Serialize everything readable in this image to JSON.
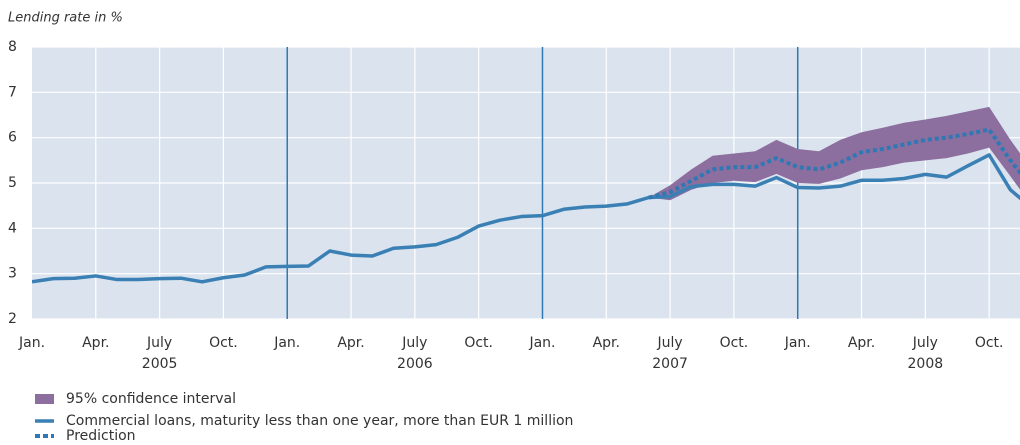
{
  "chart_data": {
    "type": "line",
    "y_label": "Lending rate in %",
    "categories": [
      "Jan.",
      null,
      null,
      "Apr.",
      null,
      null,
      "July",
      null,
      null,
      "Oct.",
      null,
      null,
      "Jan.",
      null,
      null,
      "Apr.",
      null,
      null,
      "July",
      null,
      null,
      "Oct.",
      null,
      null,
      "Jan.",
      null,
      null,
      "Apr.",
      null,
      null,
      "July",
      null,
      null,
      "Oct.",
      null,
      null,
      "Jan.",
      null,
      null,
      "Apr.",
      null,
      null,
      "July",
      null,
      null,
      "Oct.",
      null,
      null
    ],
    "x_groups": [
      "2005",
      "2006",
      "2007",
      "2008"
    ],
    "series": [
      {
        "name": "95% confidence interval",
        "color": "#8c6e9f",
        "lower": [
          null,
          null,
          null,
          null,
          null,
          null,
          null,
          null,
          null,
          null,
          null,
          null,
          null,
          null,
          null,
          null,
          null,
          null,
          null,
          null,
          null,
          null,
          null,
          null,
          null,
          null,
          null,
          null,
          null,
          4.68,
          4.62,
          4.85,
          5.0,
          5.05,
          5.02,
          5.2,
          5.0,
          4.98,
          5.1,
          5.28,
          5.35,
          5.45,
          5.5,
          5.55,
          5.65,
          5.78,
          5.15,
          4.5
        ],
        "upper": [
          null,
          null,
          null,
          null,
          null,
          null,
          null,
          null,
          null,
          null,
          null,
          null,
          null,
          null,
          null,
          null,
          null,
          null,
          null,
          null,
          null,
          null,
          null,
          null,
          null,
          null,
          null,
          null,
          null,
          4.68,
          4.95,
          5.3,
          5.6,
          5.65,
          5.7,
          5.95,
          5.75,
          5.7,
          5.95,
          6.12,
          6.22,
          6.33,
          6.4,
          6.48,
          6.58,
          6.68,
          5.95,
          5.3
        ]
      },
      {
        "name": "Commercial loans, maturity less than one year, more than EUR 1 million",
        "color": "#3a80b4",
        "values": [
          2.82,
          2.89,
          2.9,
          2.95,
          2.87,
          2.87,
          2.89,
          2.9,
          2.82,
          2.91,
          2.97,
          3.15,
          3.16,
          3.17,
          3.5,
          3.41,
          3.39,
          3.56,
          3.59,
          3.64,
          3.8,
          4.05,
          4.18,
          4.26,
          4.28,
          4.42,
          4.47,
          4.49,
          4.54,
          4.68,
          4.7,
          4.92,
          4.97,
          4.97,
          4.93,
          5.12,
          4.9,
          4.89,
          4.93,
          5.06,
          5.06,
          5.1,
          5.19,
          5.13,
          5.38,
          5.62,
          4.85,
          4.45
        ]
      },
      {
        "name": "Prediction",
        "color": "#2f78b4",
        "dashed": true,
        "values": [
          null,
          null,
          null,
          null,
          null,
          null,
          null,
          null,
          null,
          null,
          null,
          null,
          null,
          null,
          null,
          null,
          null,
          null,
          null,
          null,
          null,
          null,
          null,
          null,
          null,
          null,
          null,
          null,
          null,
          4.68,
          4.8,
          5.05,
          5.3,
          5.35,
          5.35,
          5.55,
          5.35,
          5.3,
          5.45,
          5.68,
          5.75,
          5.85,
          5.95,
          6.0,
          6.08,
          6.18,
          5.5,
          4.9
        ]
      }
    ],
    "ylim": [
      2,
      8
    ],
    "yticks": [
      2,
      3,
      4,
      5,
      6,
      7,
      8
    ],
    "grid": true
  }
}
